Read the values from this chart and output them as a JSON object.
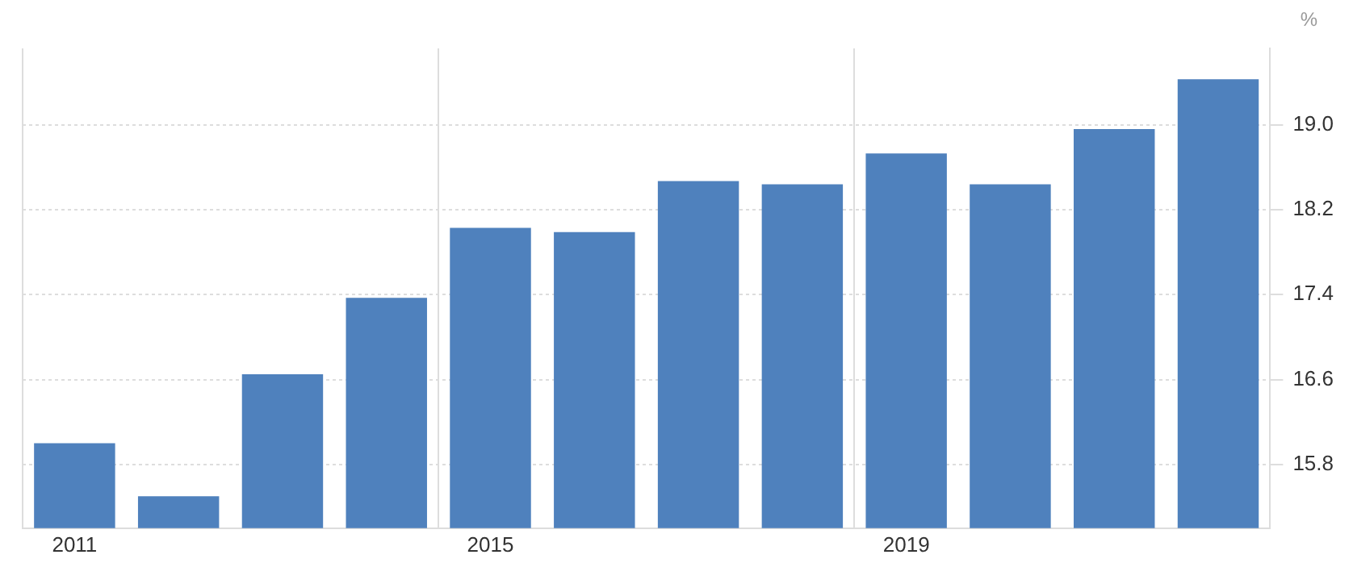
{
  "chart_data": {
    "type": "bar",
    "ylabel": "%",
    "categories": [
      "2011",
      null,
      null,
      null,
      "2015",
      null,
      null,
      null,
      "2019",
      null,
      null,
      null
    ],
    "values": [
      16.0,
      15.5,
      16.65,
      17.37,
      18.03,
      17.99,
      18.47,
      18.44,
      18.73,
      18.44,
      18.96,
      19.43
    ],
    "color": "#4f81bd",
    "ylim": [
      15.2,
      19.72
    ],
    "yticks": [
      15.8,
      16.6,
      17.4,
      18.2,
      {
        "value": 19,
        "label": "19.0"
      }
    ],
    "grid": true,
    "legend": false
  }
}
